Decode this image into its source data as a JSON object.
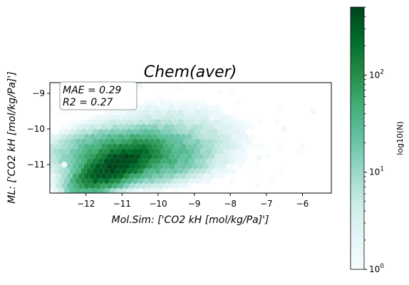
{
  "chart_data": {
    "type": "heatmap",
    "subtype": "hexbin",
    "title": "Chem(aver)",
    "xlabel": "Mol.Sim: ['CO2 kH [mol/kg/Pa]']",
    "ylabel": "ML: ['CO2 kH [mol/kg/Pa]']",
    "xlim": [
      -13.0,
      -5.2
    ],
    "ylim": [
      -11.8,
      -8.7
    ],
    "xticks": [
      -12,
      -11,
      -10,
      -9,
      -8,
      -7,
      -6
    ],
    "xtick_labels": [
      "−12",
      "−11",
      "−10",
      "−9",
      "−8",
      "−7",
      "−6"
    ],
    "yticks": [
      -11,
      -10,
      -9
    ],
    "ytick_labels": [
      "−11",
      "−10",
      "−9"
    ],
    "annotation": {
      "lines": [
        "MAE = 0.29",
        "R2 = 0.27"
      ]
    },
    "colorbar": {
      "label": "log10(N)",
      "scale": "log",
      "range": [
        1,
        500
      ],
      "ticks": [
        1,
        10,
        100
      ],
      "tick_labels": [
        "10",
        "10",
        "10"
      ],
      "tick_exponents": [
        "0",
        "1",
        "2"
      ],
      "colormap": [
        "#f7fcfd",
        "#e5f5f9",
        "#ccece6",
        "#99d8c9",
        "#66c2a4",
        "#41ae76",
        "#238b45",
        "#006d2c",
        "#00441b"
      ]
    },
    "density": {
      "main_cluster": {
        "x": -11.2,
        "y": -11.05,
        "peak_count": 480
      },
      "secondary_cluster": {
        "x": -10.8,
        "y": -10.75,
        "peak_count": 90
      },
      "outlier_points": [
        {
          "x": -12.6,
          "y": -11.0,
          "count": 1
        },
        {
          "x": -10.5,
          "y": -8.8,
          "count": 1
        },
        {
          "x": -8.5,
          "y": -9.7,
          "count": 1
        },
        {
          "x": -7.2,
          "y": -10.8,
          "count": 1
        },
        {
          "x": -6.5,
          "y": -10.0,
          "count": 1
        },
        {
          "x": -5.7,
          "y": -9.5,
          "count": 1
        },
        {
          "x": -7.9,
          "y": -11.2,
          "count": 1
        }
      ]
    }
  }
}
